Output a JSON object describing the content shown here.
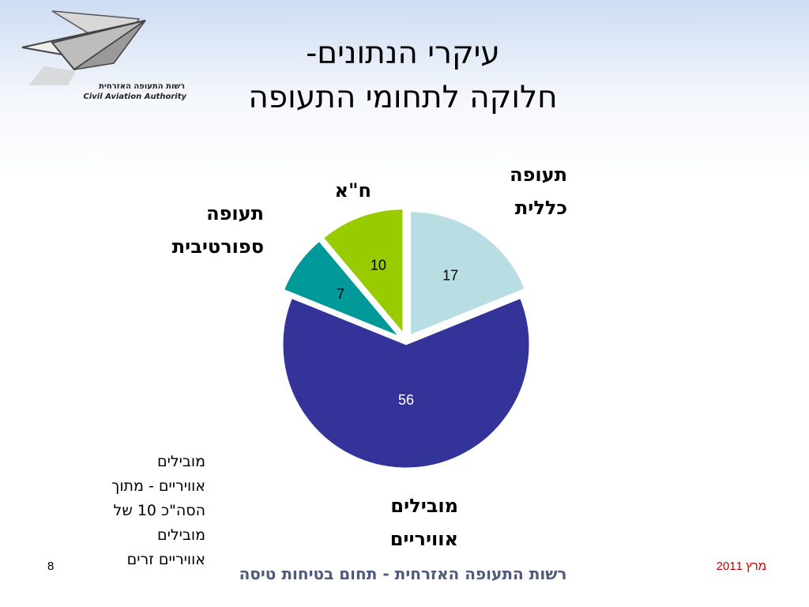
{
  "logo": {
    "icon": "paper-plane-icon",
    "name_he": "רשות התעופה האזרחית",
    "name_en": "Civil Aviation Authority"
  },
  "slide": {
    "title_line1": "עיקרי הנתונים-",
    "title_line2": "חלוקה לתחומי התעופה",
    "note": [
      "מובילים",
      "אוויריים - מתוך",
      "הסה\"כ 10 של",
      "מובילים",
      "אוויריים זרים"
    ],
    "footer": "רשות התעופה האזרחית - תחום בטיחות טיסה",
    "date": "מרץ 2011",
    "page_number": "8"
  },
  "chart_data": {
    "type": "pie",
    "exploded": true,
    "slices": [
      {
        "label_lines": [
          "תעופה",
          "כללית"
        ],
        "value": 17,
        "color": "#b8dde3"
      },
      {
        "label_lines": [
          "מובילים",
          "אוויריים"
        ],
        "value": 56,
        "color": "#333399"
      },
      {
        "label_lines": [
          "תעופה",
          "ספורטיבית"
        ],
        "value": 7,
        "color": "#009999"
      },
      {
        "label_lines": [
          "ח\"א"
        ],
        "value": 10,
        "color": "#99cc00"
      }
    ]
  }
}
